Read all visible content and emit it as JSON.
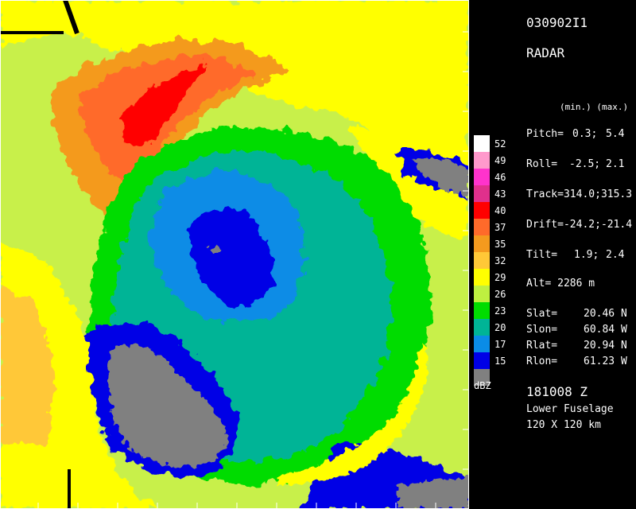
{
  "header": {
    "flight_id": "030902I1",
    "product": "RADAR"
  },
  "ranges_header": "(min.) (max.)",
  "params": [
    {
      "label": "Pitch=",
      "min": "0.3;",
      "max": "5.4"
    },
    {
      "label": "Roll=",
      "min": "-2.5;",
      "max": "2.1"
    },
    {
      "label": "Track=",
      "min": "314.0;",
      "max": "315.3"
    },
    {
      "label": "Drift=",
      "min": "-24.2;",
      "max": "-21.4"
    },
    {
      "label": "Tilt=",
      "min": "1.9;",
      "max": "2.4"
    }
  ],
  "altitude": "Alt= 2286 m",
  "positions": [
    {
      "label": "Slat=",
      "value": "20.46 N"
    },
    {
      "label": "Slon=",
      "value": "60.84 W"
    },
    {
      "label": "Rlat=",
      "value": "20.94 N"
    },
    {
      "label": "Rlon=",
      "value": "61.23 W"
    }
  ],
  "time": "181008 Z",
  "antenna": "Lower Fuselage",
  "domain_size": "120 X 120 km",
  "colorbar": {
    "unit": "dBZ",
    "levels": [
      {
        "label": "52",
        "color": "#ffffff"
      },
      {
        "label": "49",
        "color": "#ff99cc"
      },
      {
        "label": "46",
        "color": "#ff33cc"
      },
      {
        "label": "43",
        "color": "#e0308c"
      },
      {
        "label": "40",
        "color": "#ff0000"
      },
      {
        "label": "37",
        "color": "#ff6a2a"
      },
      {
        "label": "35",
        "color": "#f49a1e"
      },
      {
        "label": "32",
        "color": "#ffc837"
      },
      {
        "label": "29",
        "color": "#ffff00"
      },
      {
        "label": "26",
        "color": "#bef040"
      },
      {
        "label": "23",
        "color": "#00dc00"
      },
      {
        "label": "20",
        "color": "#00b496"
      },
      {
        "label": "17",
        "color": "#0a8ce6"
      },
      {
        "label": "15",
        "color": "#0000e6"
      },
      {
        "label": "",
        "color": "#808080"
      }
    ]
  }
}
